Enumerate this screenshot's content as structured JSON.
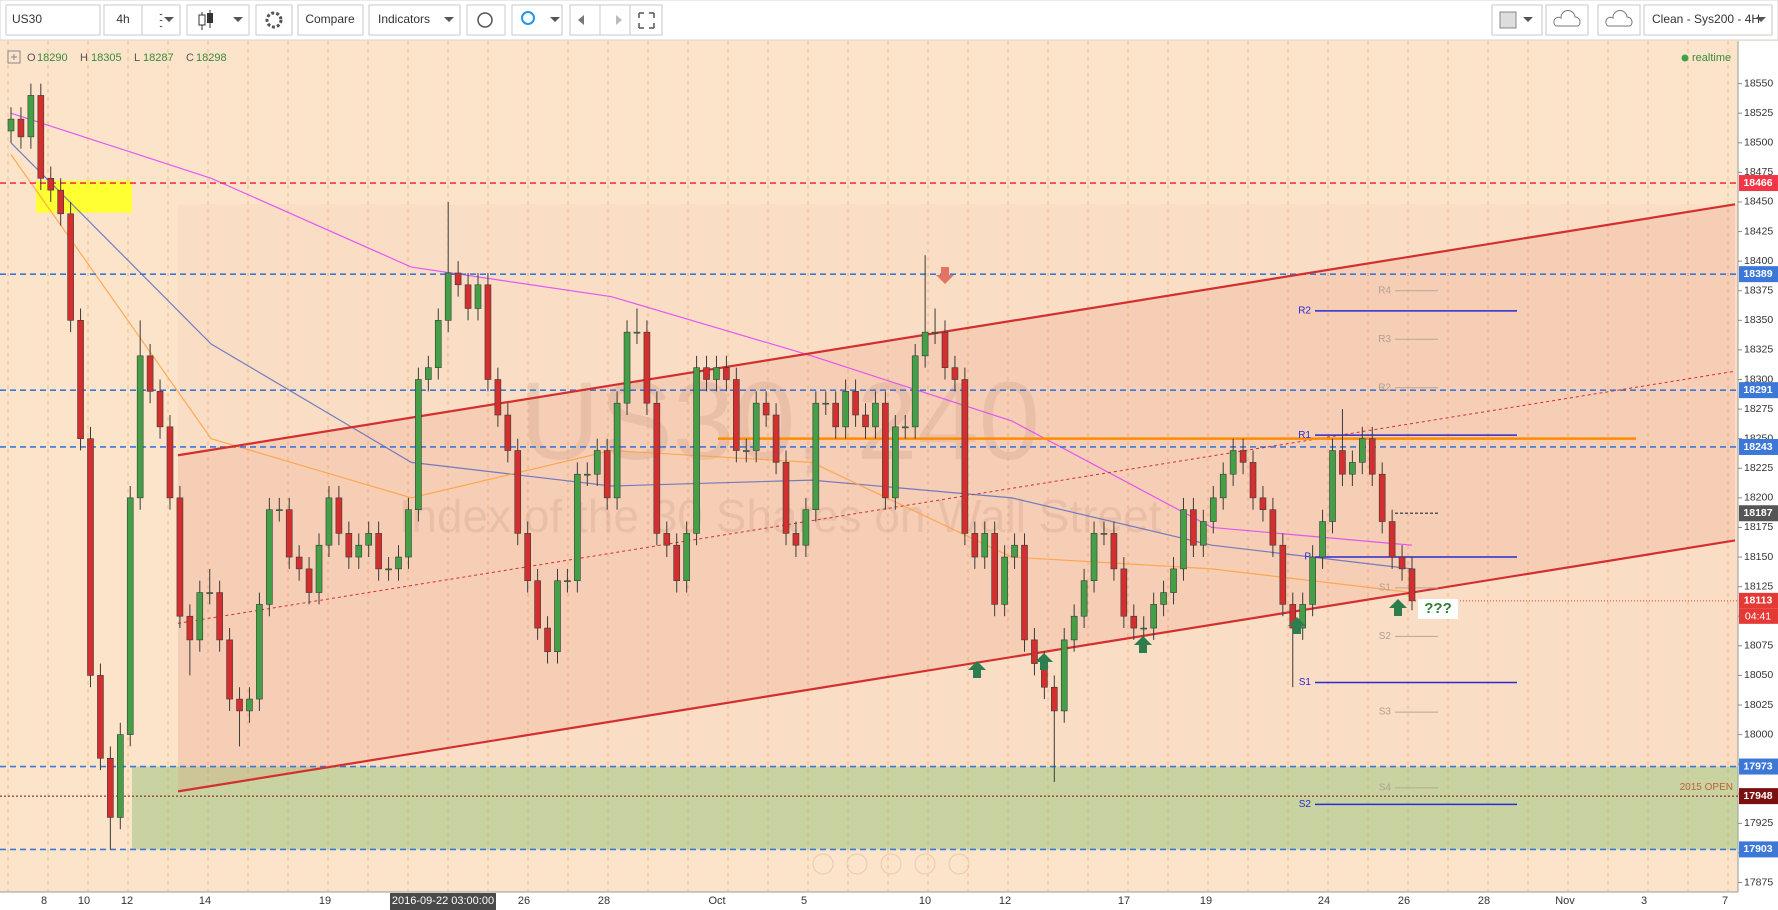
{
  "toolbar": {
    "symbol": "US30",
    "interval": "4h",
    "compare": "Compare",
    "indicators": "Indicators",
    "layout": "Clean - Sys200 - 4H"
  },
  "ohlc": [
    {
      "key": "O",
      "value": 18290
    },
    {
      "key": "H",
      "value": 18305
    },
    {
      "key": "L",
      "value": 18287
    },
    {
      "key": "C",
      "value": 18298
    }
  ],
  "status": "realtime",
  "watermark": {
    "symbol": "US30, 240",
    "description": "Index of the 30 Shares on Wall Street"
  },
  "chart_data": {
    "type": "candlestick",
    "ylim": [
      17867,
      18586
    ],
    "yticks": [
      17875,
      17900,
      17925,
      17950,
      17975,
      18000,
      18025,
      18050,
      18075,
      18100,
      18125,
      18150,
      18175,
      18200,
      18225,
      18250,
      18275,
      18300,
      18325,
      18350,
      18375,
      18400,
      18425,
      18450,
      18475,
      18500,
      18525,
      18550
    ],
    "dates": [
      "8",
      "10",
      "12",
      "14",
      "19",
      "2016-09-22 03:00:00",
      "26",
      "28",
      "Oct",
      "5",
      "10",
      "12",
      "17",
      "19",
      "24",
      "26",
      "28",
      "Nov",
      "3",
      "7"
    ],
    "up_color": "#43a047",
    "down_color": "#d32f2f",
    "candles": [
      [
        18510,
        18530,
        18500,
        18520
      ],
      [
        18520,
        18530,
        18495,
        18505
      ],
      [
        18505,
        18550,
        18495,
        18540
      ],
      [
        18540,
        18550,
        18460,
        18470
      ],
      [
        18470,
        18480,
        18450,
        18460
      ],
      [
        18460,
        18470,
        18430,
        18440
      ],
      [
        18440,
        18450,
        18340,
        18350
      ],
      [
        18350,
        18360,
        18240,
        18250
      ],
      [
        18250,
        18260,
        18040,
        18050
      ],
      [
        18050,
        18060,
        17970,
        17980
      ],
      [
        17980,
        17990,
        17903,
        17930
      ],
      [
        17930,
        18010,
        17920,
        18000
      ],
      [
        18000,
        18210,
        17990,
        18200
      ],
      [
        18200,
        18350,
        18190,
        18320
      ],
      [
        18320,
        18330,
        18280,
        18290
      ],
      [
        18290,
        18300,
        18250,
        18260
      ],
      [
        18260,
        18270,
        18190,
        18200
      ],
      [
        18200,
        18210,
        18090,
        18100
      ],
      [
        18100,
        18110,
        18050,
        18080
      ],
      [
        18080,
        18130,
        18070,
        18120
      ],
      [
        18120,
        18140,
        18110,
        18120
      ],
      [
        18120,
        18130,
        18070,
        18080
      ],
      [
        18080,
        18090,
        18020,
        18030
      ],
      [
        18030,
        18040,
        17990,
        18020
      ],
      [
        18020,
        18040,
        18010,
        18030
      ],
      [
        18030,
        18120,
        18020,
        18110
      ],
      [
        18110,
        18200,
        18100,
        18190
      ],
      [
        18190,
        18200,
        18180,
        18190
      ],
      [
        18190,
        18200,
        18140,
        18150
      ],
      [
        18150,
        18160,
        18130,
        18140
      ],
      [
        18140,
        18150,
        18110,
        18120
      ],
      [
        18120,
        18170,
        18110,
        18160
      ],
      [
        18160,
        18210,
        18150,
        18200
      ],
      [
        18200,
        18210,
        18160,
        18170
      ],
      [
        18170,
        18180,
        18140,
        18150
      ],
      [
        18150,
        18170,
        18140,
        18160
      ],
      [
        18160,
        18180,
        18150,
        18170
      ],
      [
        18170,
        18180,
        18130,
        18140
      ],
      [
        18140,
        18150,
        18130,
        18140
      ],
      [
        18140,
        18160,
        18130,
        18150
      ],
      [
        18150,
        18200,
        18140,
        18190
      ],
      [
        18190,
        18310,
        18180,
        18300
      ],
      [
        18300,
        18320,
        18290,
        18310
      ],
      [
        18310,
        18360,
        18300,
        18350
      ],
      [
        18350,
        18450,
        18340,
        18390
      ],
      [
        18390,
        18400,
        18370,
        18380
      ],
      [
        18380,
        18390,
        18350,
        18360
      ],
      [
        18360,
        18390,
        18350,
        18380
      ],
      [
        18380,
        18390,
        18290,
        18300
      ],
      [
        18300,
        18310,
        18260,
        18270
      ],
      [
        18270,
        18280,
        18230,
        18240
      ],
      [
        18240,
        18250,
        18160,
        18170
      ],
      [
        18170,
        18180,
        18120,
        18130
      ],
      [
        18130,
        18140,
        18080,
        18090
      ],
      [
        18090,
        18100,
        18060,
        18070
      ],
      [
        18070,
        18140,
        18060,
        18130
      ],
      [
        18130,
        18140,
        18120,
        18130
      ],
      [
        18130,
        18230,
        18120,
        18220
      ],
      [
        18220,
        18230,
        18210,
        18220
      ],
      [
        18220,
        18250,
        18210,
        18240
      ],
      [
        18240,
        18250,
        18190,
        18200
      ],
      [
        18200,
        18290,
        18190,
        18280
      ],
      [
        18280,
        18350,
        18270,
        18340
      ],
      [
        18340,
        18360,
        18330,
        18340
      ],
      [
        18340,
        18350,
        18270,
        18280
      ],
      [
        18280,
        18290,
        18160,
        18170
      ],
      [
        18170,
        18180,
        18150,
        18160
      ],
      [
        18160,
        18170,
        18120,
        18130
      ],
      [
        18130,
        18180,
        18120,
        18170
      ],
      [
        18170,
        18320,
        18160,
        18310
      ],
      [
        18310,
        18320,
        18290,
        18300
      ],
      [
        18300,
        18320,
        18290,
        18310
      ],
      [
        18310,
        18320,
        18290,
        18300
      ],
      [
        18300,
        18310,
        18230,
        18240
      ],
      [
        18240,
        18250,
        18230,
        18240
      ],
      [
        18240,
        18290,
        18230,
        18280
      ],
      [
        18280,
        18290,
        18260,
        18270
      ],
      [
        18270,
        18280,
        18220,
        18230
      ],
      [
        18230,
        18240,
        18160,
        18170
      ],
      [
        18170,
        18180,
        18150,
        18160
      ],
      [
        18160,
        18200,
        18150,
        18190
      ],
      [
        18190,
        18290,
        18180,
        18280
      ],
      [
        18280,
        18290,
        18270,
        18280
      ],
      [
        18280,
        18290,
        18250,
        18260
      ],
      [
        18260,
        18300,
        18250,
        18290
      ],
      [
        18290,
        18300,
        18260,
        18270
      ],
      [
        18270,
        18280,
        18250,
        18260
      ],
      [
        18260,
        18290,
        18250,
        18280
      ],
      [
        18280,
        18290,
        18190,
        18200
      ],
      [
        18200,
        18270,
        18190,
        18260
      ],
      [
        18260,
        18270,
        18250,
        18260
      ],
      [
        18260,
        18330,
        18250,
        18320
      ],
      [
        18320,
        18405,
        18310,
        18340
      ],
      [
        18340,
        18360,
        18330,
        18340
      ],
      [
        18340,
        18350,
        18300,
        18310
      ],
      [
        18310,
        18320,
        18290,
        18300
      ],
      [
        18300,
        18310,
        18160,
        18170
      ],
      [
        18170,
        18180,
        18140,
        18150
      ],
      [
        18150,
        18180,
        18140,
        18170
      ],
      [
        18170,
        18180,
        18100,
        18110
      ],
      [
        18110,
        18160,
        18100,
        18150
      ],
      [
        18150,
        18170,
        18140,
        18160
      ],
      [
        18160,
        18170,
        18070,
        18080
      ],
      [
        18080,
        18090,
        18050,
        18060
      ],
      [
        18060,
        18070,
        18030,
        18040
      ],
      [
        18040,
        18050,
        17960,
        18020
      ],
      [
        18020,
        18090,
        18010,
        18080
      ],
      [
        18080,
        18110,
        18070,
        18100
      ],
      [
        18100,
        18140,
        18090,
        18130
      ],
      [
        18130,
        18180,
        18120,
        18170
      ],
      [
        18170,
        18180,
        18160,
        18170
      ],
      [
        18170,
        18180,
        18130,
        18140
      ],
      [
        18140,
        18150,
        18090,
        18100
      ],
      [
        18100,
        18110,
        18080,
        18090
      ],
      [
        18090,
        18100,
        18080,
        18090
      ],
      [
        18090,
        18120,
        18080,
        18110
      ],
      [
        18110,
        18130,
        18100,
        18120
      ],
      [
        18120,
        18150,
        18110,
        18140
      ],
      [
        18140,
        18200,
        18130,
        18190
      ],
      [
        18190,
        18200,
        18150,
        18160
      ],
      [
        18160,
        18190,
        18150,
        18180
      ],
      [
        18180,
        18210,
        18170,
        18200
      ],
      [
        18200,
        18230,
        18190,
        18220
      ],
      [
        18220,
        18250,
        18210,
        18240
      ],
      [
        18240,
        18250,
        18220,
        18230
      ],
      [
        18230,
        18240,
        18190,
        18200
      ],
      [
        18200,
        18210,
        18180,
        18190
      ],
      [
        18190,
        18200,
        18150,
        18160
      ],
      [
        18160,
        18170,
        18100,
        18110
      ],
      [
        18110,
        18120,
        18040,
        18090
      ],
      [
        18090,
        18120,
        18080,
        18110
      ],
      [
        18110,
        18160,
        18100,
        18150
      ],
      [
        18150,
        18190,
        18140,
        18180
      ],
      [
        18180,
        18250,
        18170,
        18240
      ],
      [
        18240,
        18275,
        18210,
        18220
      ],
      [
        18220,
        18240,
        18210,
        18230
      ],
      [
        18230,
        18260,
        18220,
        18250
      ],
      [
        18250,
        18260,
        18210,
        18220
      ],
      [
        18220,
        18230,
        18170,
        18180
      ],
      [
        18180,
        18190,
        18140,
        18150
      ],
      [
        18150,
        18160,
        18130,
        18140
      ],
      [
        18140,
        18150,
        18105,
        18113
      ]
    ],
    "moving_averages": [
      {
        "color": "#e040fb",
        "values": [
          18525,
          18470,
          18395,
          18370,
          18320,
          18265,
          18175,
          18160
        ]
      },
      {
        "color": "#5c6bc0",
        "values": [
          18500,
          18330,
          18230,
          18210,
          18215,
          18200,
          18160,
          18140
        ]
      },
      {
        "color": "#ffa040",
        "values": [
          18490,
          18250,
          18200,
          18240,
          18230,
          18150,
          18140,
          18120
        ]
      }
    ],
    "levels": [
      {
        "value": 18466,
        "color": "#f23645",
        "style": "dashed"
      },
      {
        "value": 18389,
        "color": "#3c78d8",
        "style": "dashed"
      },
      {
        "value": 18291,
        "color": "#3c78d8",
        "style": "dashed"
      },
      {
        "value": 18243,
        "color": "#3c78d8",
        "style": "dashed"
      },
      {
        "value": 17973,
        "color": "#3c78d8",
        "style": "dashed"
      },
      {
        "value": 17948,
        "color": "#7b1010",
        "style": "dotted"
      },
      {
        "value": 17903,
        "color": "#3c78d8",
        "style": "dashed"
      }
    ],
    "crosshair": {
      "value": 18187
    },
    "last_price": {
      "value": 18113,
      "countdown": "04:41",
      "color": "#e53935"
    },
    "channel": {
      "upper": [
        18236,
        18448
      ],
      "mid": [
        18094,
        18307
      ],
      "lower": [
        17952,
        18164
      ],
      "color": "#d32f2f"
    },
    "resistance": {
      "value": 18250,
      "color": "#ff8c00"
    },
    "yellow_zone": [
      18441,
      18468
    ],
    "green_zone": [
      17903,
      17973
    ],
    "pivots": [
      {
        "label": "R4",
        "value": 18375,
        "kind": "gray"
      },
      {
        "label": "R2",
        "value": 18358,
        "kind": "blue"
      },
      {
        "label": "R3",
        "value": 18334,
        "kind": "gray"
      },
      {
        "label": "R2",
        "value": 18293,
        "kind": "gray"
      },
      {
        "label": "R1",
        "value": 18253,
        "kind": "blue"
      },
      {
        "label": "P",
        "value": 18150,
        "kind": "blue"
      },
      {
        "label": "S1",
        "value": 18124,
        "kind": "gray"
      },
      {
        "label": "S2",
        "value": 18083,
        "kind": "gray"
      },
      {
        "label": "S1",
        "value": 18044,
        "kind": "blue"
      },
      {
        "label": "S3",
        "value": 18019,
        "kind": "gray"
      },
      {
        "label": "S4",
        "value": 17955,
        "kind": "gray"
      },
      {
        "label": "S2",
        "value": 17941,
        "kind": "blue"
      }
    ],
    "annotations": {
      "question": "???",
      "open_2015": "2015 OPEN"
    }
  }
}
